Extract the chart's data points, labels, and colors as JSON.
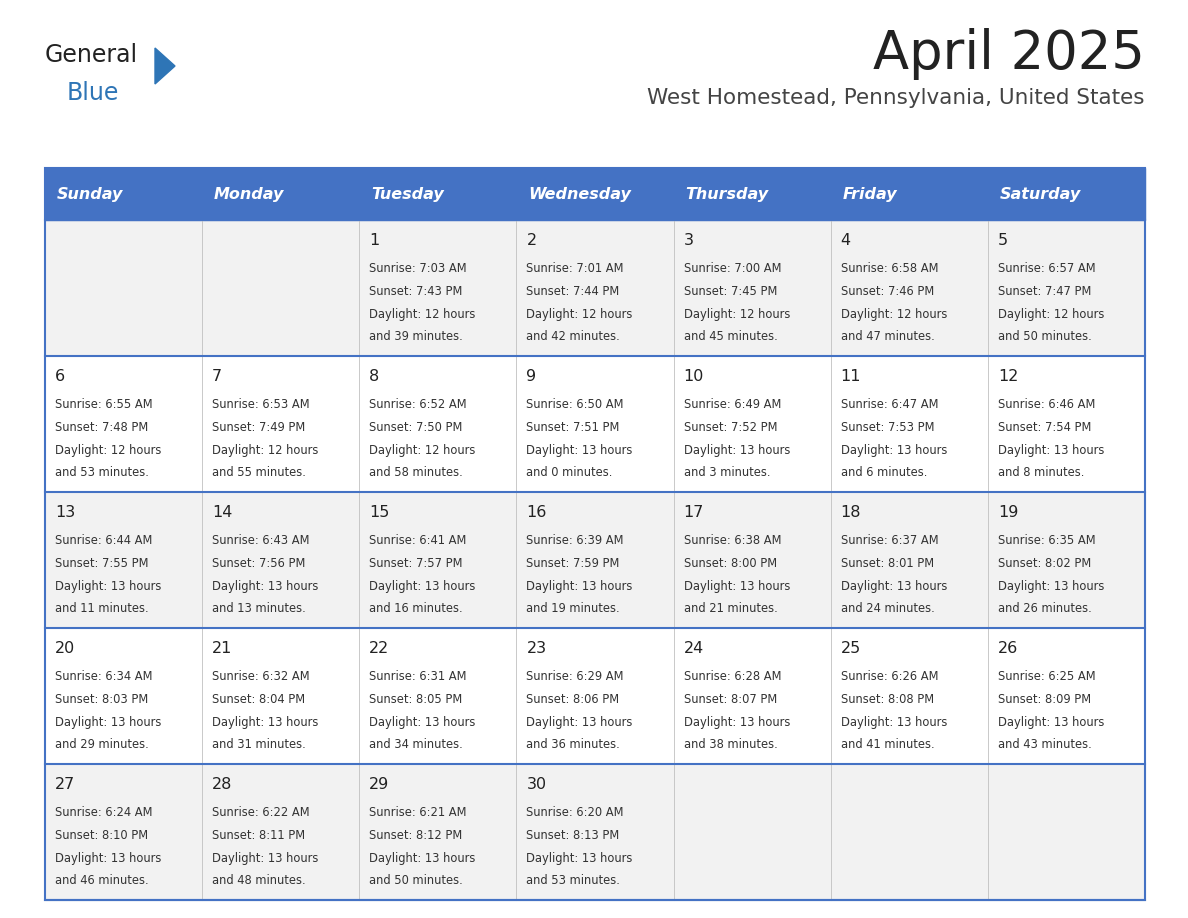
{
  "title": "April 2025",
  "subtitle": "West Homestead, Pennsylvania, United States",
  "header_bg_color": "#4472C4",
  "header_text_color": "#FFFFFF",
  "cell_bg_odd": "#F2F2F2",
  "cell_bg_even": "#FFFFFF",
  "border_color": "#4472C4",
  "text_color": "#333333",
  "days_of_week": [
    "Sunday",
    "Monday",
    "Tuesday",
    "Wednesday",
    "Thursday",
    "Friday",
    "Saturday"
  ],
  "weeks": [
    [
      {
        "day": "",
        "sunrise": "",
        "sunset": "",
        "daylight": ""
      },
      {
        "day": "",
        "sunrise": "",
        "sunset": "",
        "daylight": ""
      },
      {
        "day": "1",
        "sunrise": "Sunrise: 7:03 AM",
        "sunset": "Sunset: 7:43 PM",
        "daylight": "Daylight: 12 hours\nand 39 minutes."
      },
      {
        "day": "2",
        "sunrise": "Sunrise: 7:01 AM",
        "sunset": "Sunset: 7:44 PM",
        "daylight": "Daylight: 12 hours\nand 42 minutes."
      },
      {
        "day": "3",
        "sunrise": "Sunrise: 7:00 AM",
        "sunset": "Sunset: 7:45 PM",
        "daylight": "Daylight: 12 hours\nand 45 minutes."
      },
      {
        "day": "4",
        "sunrise": "Sunrise: 6:58 AM",
        "sunset": "Sunset: 7:46 PM",
        "daylight": "Daylight: 12 hours\nand 47 minutes."
      },
      {
        "day": "5",
        "sunrise": "Sunrise: 6:57 AM",
        "sunset": "Sunset: 7:47 PM",
        "daylight": "Daylight: 12 hours\nand 50 minutes."
      }
    ],
    [
      {
        "day": "6",
        "sunrise": "Sunrise: 6:55 AM",
        "sunset": "Sunset: 7:48 PM",
        "daylight": "Daylight: 12 hours\nand 53 minutes."
      },
      {
        "day": "7",
        "sunrise": "Sunrise: 6:53 AM",
        "sunset": "Sunset: 7:49 PM",
        "daylight": "Daylight: 12 hours\nand 55 minutes."
      },
      {
        "day": "8",
        "sunrise": "Sunrise: 6:52 AM",
        "sunset": "Sunset: 7:50 PM",
        "daylight": "Daylight: 12 hours\nand 58 minutes."
      },
      {
        "day": "9",
        "sunrise": "Sunrise: 6:50 AM",
        "sunset": "Sunset: 7:51 PM",
        "daylight": "Daylight: 13 hours\nand 0 minutes."
      },
      {
        "day": "10",
        "sunrise": "Sunrise: 6:49 AM",
        "sunset": "Sunset: 7:52 PM",
        "daylight": "Daylight: 13 hours\nand 3 minutes."
      },
      {
        "day": "11",
        "sunrise": "Sunrise: 6:47 AM",
        "sunset": "Sunset: 7:53 PM",
        "daylight": "Daylight: 13 hours\nand 6 minutes."
      },
      {
        "day": "12",
        "sunrise": "Sunrise: 6:46 AM",
        "sunset": "Sunset: 7:54 PM",
        "daylight": "Daylight: 13 hours\nand 8 minutes."
      }
    ],
    [
      {
        "day": "13",
        "sunrise": "Sunrise: 6:44 AM",
        "sunset": "Sunset: 7:55 PM",
        "daylight": "Daylight: 13 hours\nand 11 minutes."
      },
      {
        "day": "14",
        "sunrise": "Sunrise: 6:43 AM",
        "sunset": "Sunset: 7:56 PM",
        "daylight": "Daylight: 13 hours\nand 13 minutes."
      },
      {
        "day": "15",
        "sunrise": "Sunrise: 6:41 AM",
        "sunset": "Sunset: 7:57 PM",
        "daylight": "Daylight: 13 hours\nand 16 minutes."
      },
      {
        "day": "16",
        "sunrise": "Sunrise: 6:39 AM",
        "sunset": "Sunset: 7:59 PM",
        "daylight": "Daylight: 13 hours\nand 19 minutes."
      },
      {
        "day": "17",
        "sunrise": "Sunrise: 6:38 AM",
        "sunset": "Sunset: 8:00 PM",
        "daylight": "Daylight: 13 hours\nand 21 minutes."
      },
      {
        "day": "18",
        "sunrise": "Sunrise: 6:37 AM",
        "sunset": "Sunset: 8:01 PM",
        "daylight": "Daylight: 13 hours\nand 24 minutes."
      },
      {
        "day": "19",
        "sunrise": "Sunrise: 6:35 AM",
        "sunset": "Sunset: 8:02 PM",
        "daylight": "Daylight: 13 hours\nand 26 minutes."
      }
    ],
    [
      {
        "day": "20",
        "sunrise": "Sunrise: 6:34 AM",
        "sunset": "Sunset: 8:03 PM",
        "daylight": "Daylight: 13 hours\nand 29 minutes."
      },
      {
        "day": "21",
        "sunrise": "Sunrise: 6:32 AM",
        "sunset": "Sunset: 8:04 PM",
        "daylight": "Daylight: 13 hours\nand 31 minutes."
      },
      {
        "day": "22",
        "sunrise": "Sunrise: 6:31 AM",
        "sunset": "Sunset: 8:05 PM",
        "daylight": "Daylight: 13 hours\nand 34 minutes."
      },
      {
        "day": "23",
        "sunrise": "Sunrise: 6:29 AM",
        "sunset": "Sunset: 8:06 PM",
        "daylight": "Daylight: 13 hours\nand 36 minutes."
      },
      {
        "day": "24",
        "sunrise": "Sunrise: 6:28 AM",
        "sunset": "Sunset: 8:07 PM",
        "daylight": "Daylight: 13 hours\nand 38 minutes."
      },
      {
        "day": "25",
        "sunrise": "Sunrise: 6:26 AM",
        "sunset": "Sunset: 8:08 PM",
        "daylight": "Daylight: 13 hours\nand 41 minutes."
      },
      {
        "day": "26",
        "sunrise": "Sunrise: 6:25 AM",
        "sunset": "Sunset: 8:09 PM",
        "daylight": "Daylight: 13 hours\nand 43 minutes."
      }
    ],
    [
      {
        "day": "27",
        "sunrise": "Sunrise: 6:24 AM",
        "sunset": "Sunset: 8:10 PM",
        "daylight": "Daylight: 13 hours\nand 46 minutes."
      },
      {
        "day": "28",
        "sunrise": "Sunrise: 6:22 AM",
        "sunset": "Sunset: 8:11 PM",
        "daylight": "Daylight: 13 hours\nand 48 minutes."
      },
      {
        "day": "29",
        "sunrise": "Sunrise: 6:21 AM",
        "sunset": "Sunset: 8:12 PM",
        "daylight": "Daylight: 13 hours\nand 50 minutes."
      },
      {
        "day": "30",
        "sunrise": "Sunrise: 6:20 AM",
        "sunset": "Sunset: 8:13 PM",
        "daylight": "Daylight: 13 hours\nand 53 minutes."
      },
      {
        "day": "",
        "sunrise": "",
        "sunset": "",
        "daylight": ""
      },
      {
        "day": "",
        "sunrise": "",
        "sunset": "",
        "daylight": ""
      },
      {
        "day": "",
        "sunrise": "",
        "sunset": "",
        "daylight": ""
      }
    ]
  ]
}
